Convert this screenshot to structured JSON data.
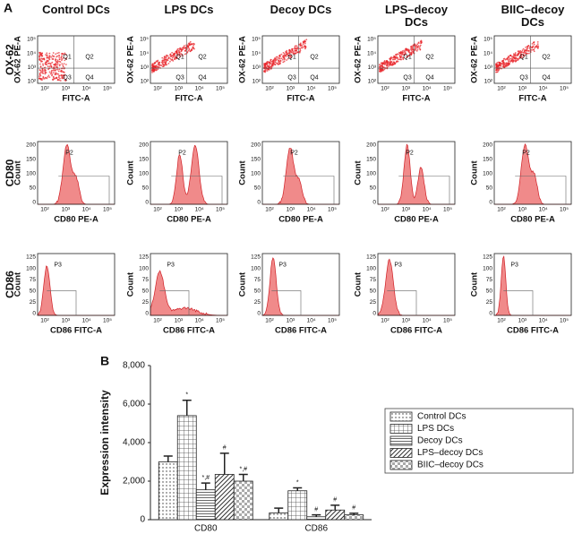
{
  "panel_a": {
    "label": "A",
    "columns": [
      "Control DCs",
      "LPS DCs",
      "Decoy DCs",
      "LPS–decoy DCs",
      "BIIC–decoy DCs"
    ],
    "rows": [
      {
        "label": "OX-62",
        "y_axis": "OX-62 PE-A",
        "x_axis": "FITC-A",
        "x_ticks": [
          "10²",
          "10³",
          "10⁴",
          "10⁵"
        ],
        "y_ticks": [
          "10⁵",
          "10⁴",
          "10³",
          "10²"
        ],
        "gates": [
          "Q1",
          "Q2",
          "Q3",
          "Q4"
        ]
      },
      {
        "label": "CD80",
        "y_axis": "Count",
        "x_axis": "CD80 PE-A",
        "x_ticks": [
          "10²",
          "10³",
          "10⁴",
          "10⁵"
        ],
        "y_ticks": [
          "200",
          "150",
          "100",
          "50",
          "0"
        ],
        "gates": [
          "P2"
        ]
      },
      {
        "label": "CD86",
        "y_axis": "Count",
        "x_axis": "CD86 FITC-A",
        "x_ticks": [
          "10²",
          "10³",
          "10⁴",
          "10⁵"
        ],
        "y_ticks": [
          "125",
          "100",
          "75",
          "50",
          "25",
          "0"
        ],
        "gates": [
          "P3"
        ]
      }
    ]
  },
  "chart_data": {
    "type": "bar",
    "panel_label": "B",
    "y_label": "Expression intensity",
    "categories": [
      "CD80",
      "CD86"
    ],
    "ylim": [
      0,
      8000
    ],
    "yticks": [
      0,
      {
        "value": 2000,
        "label": "2,000"
      },
      {
        "value": 4000,
        "label": "4,000"
      },
      {
        "value": 6000,
        "label": "6,000"
      },
      {
        "value": 8000,
        "label": "8,000"
      }
    ],
    "series": [
      {
        "name": "Control DCs",
        "pattern": "dots",
        "values": [
          3000,
          350
        ],
        "errors": [
          300,
          250
        ],
        "annotations": [
          null,
          null
        ]
      },
      {
        "name": "LPS DCs",
        "pattern": "grid",
        "values": [
          5400,
          1500
        ],
        "errors": [
          800,
          150
        ],
        "annotations": [
          "*",
          "*"
        ]
      },
      {
        "name": "Decoy DCs",
        "pattern": "hlines",
        "values": [
          1550,
          150
        ],
        "errors": [
          350,
          100
        ],
        "annotations": [
          "*,#",
          "#"
        ]
      },
      {
        "name": "LPS–decoy DCs",
        "pattern": "diagonal",
        "values": [
          2350,
          500
        ],
        "errors": [
          1100,
          250
        ],
        "annotations": [
          "#",
          "#"
        ]
      },
      {
        "name": "BIIC–decoy DCs",
        "pattern": "checker",
        "values": [
          2000,
          250
        ],
        "errors": [
          350,
          80
        ],
        "annotations": [
          "*,#",
          "#"
        ]
      }
    ],
    "legend": "right"
  }
}
